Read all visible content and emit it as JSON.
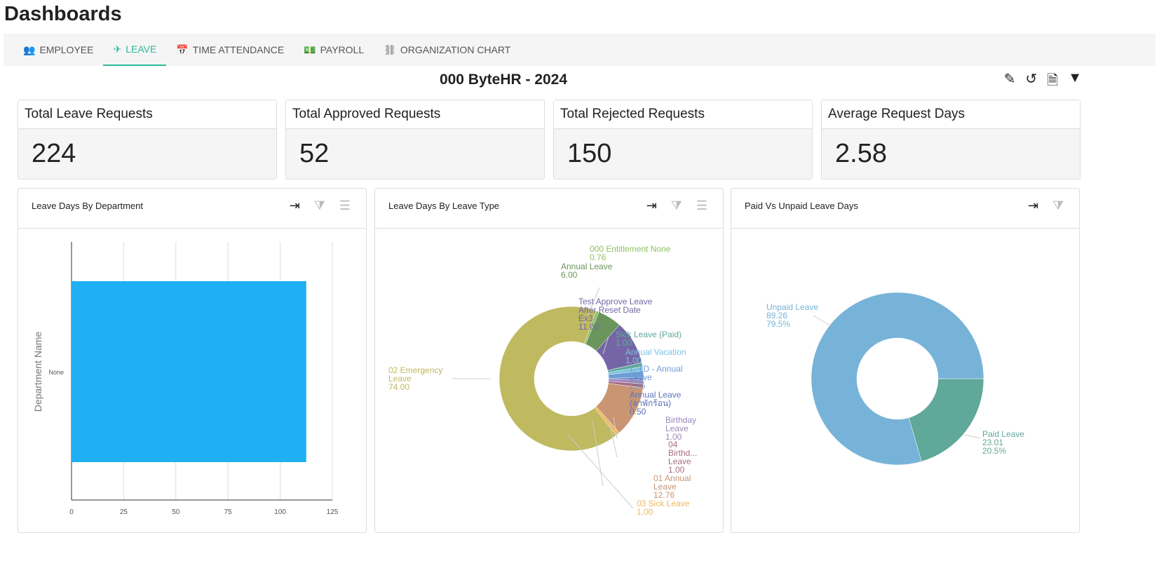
{
  "page_title": "Dashboards",
  "tabs": [
    {
      "label": "EMPLOYEE",
      "icon": "users-icon"
    },
    {
      "label": "LEAVE",
      "icon": "plane-icon"
    },
    {
      "label": "TIME ATTENDANCE",
      "icon": "calendar-clock-icon"
    },
    {
      "label": "PAYROLL",
      "icon": "money-icon"
    },
    {
      "label": "ORGANIZATION CHART",
      "icon": "sitemap-icon"
    }
  ],
  "report_title": "000 ByteHR - 2024",
  "kpis": [
    {
      "label": "Total Leave Requests",
      "value": "224"
    },
    {
      "label": "Total Approved Requests",
      "value": "52"
    },
    {
      "label": "Total Rejected Requests",
      "value": "150"
    },
    {
      "label": "Average Request Days",
      "value": "2.58"
    }
  ],
  "panels": {
    "dept": "Leave Days By Department",
    "type": "Leave Days By Leave Type",
    "paid": "Paid Vs Unpaid Leave Days"
  },
  "chart_data": [
    {
      "type": "bar",
      "orientation": "horizontal",
      "title": "Leave Days By Department",
      "ylabel": "Department Name",
      "categories": [
        "None"
      ],
      "values": [
        112.5
      ],
      "xlim": [
        0,
        125
      ],
      "xticks": [
        "0",
        "25",
        "50",
        "75",
        "100",
        "125"
      ],
      "color": "#1eb0f3"
    },
    {
      "type": "pie",
      "donut": true,
      "title": "Leave Days By Leave Type",
      "slices": [
        {
          "label": "000 Entitlement None",
          "value": 0.76,
          "text": "0.76",
          "color": "#8fc160"
        },
        {
          "label": "Annual Leave",
          "value": 6,
          "text": "6.00",
          "color": "#6a955c"
        },
        {
          "label": "Test Approve Leave After Reset Date Ex3",
          "value": 11,
          "text": "11.00",
          "color": "#7565a6"
        },
        {
          "label": "Sick Leave (Paid)",
          "value": 1,
          "text": "1.00",
          "color": "#5fa89a"
        },
        {
          "label": "Annual Vacation",
          "value": 1,
          "text": "1.00",
          "color": "#7bc2e0"
        },
        {
          "label": "1. TD - Annual Leave",
          "value": 1.75,
          "text": "1.75",
          "color": "#6d9ed4"
        },
        {
          "label": "Annual Leave (ลาพักร้อน)",
          "value": 0.5,
          "text": "0.50",
          "color": "#5b73b8"
        },
        {
          "label": "Birthday Leave",
          "value": 1,
          "text": "1.00",
          "color": "#9b87bd"
        },
        {
          "label": "04 Birthd... Leave",
          "value": 1,
          "text": "1.00",
          "color": "#a66d84"
        },
        {
          "label": "01 Annual Leave",
          "value": 12.76,
          "text": "12.76",
          "color": "#c99573"
        },
        {
          "label": "03 Sick Leave",
          "value": 1,
          "text": "1.00",
          "color": "#f0b860"
        },
        {
          "label": "02 Emergency Leave",
          "value": 74,
          "text": "74.00",
          "color": "#bfb960"
        }
      ]
    },
    {
      "type": "pie",
      "donut": true,
      "title": "Paid Vs Unpaid Leave Days",
      "slices": [
        {
          "label": "Paid Leave",
          "value": 23.01,
          "text": "23.01",
          "pct": "20.5%",
          "color": "#5fa89a"
        },
        {
          "label": "Unpaid Leave",
          "value": 89.26,
          "text": "89.26",
          "pct": "79.5%",
          "color": "#77b3d8"
        }
      ]
    }
  ]
}
